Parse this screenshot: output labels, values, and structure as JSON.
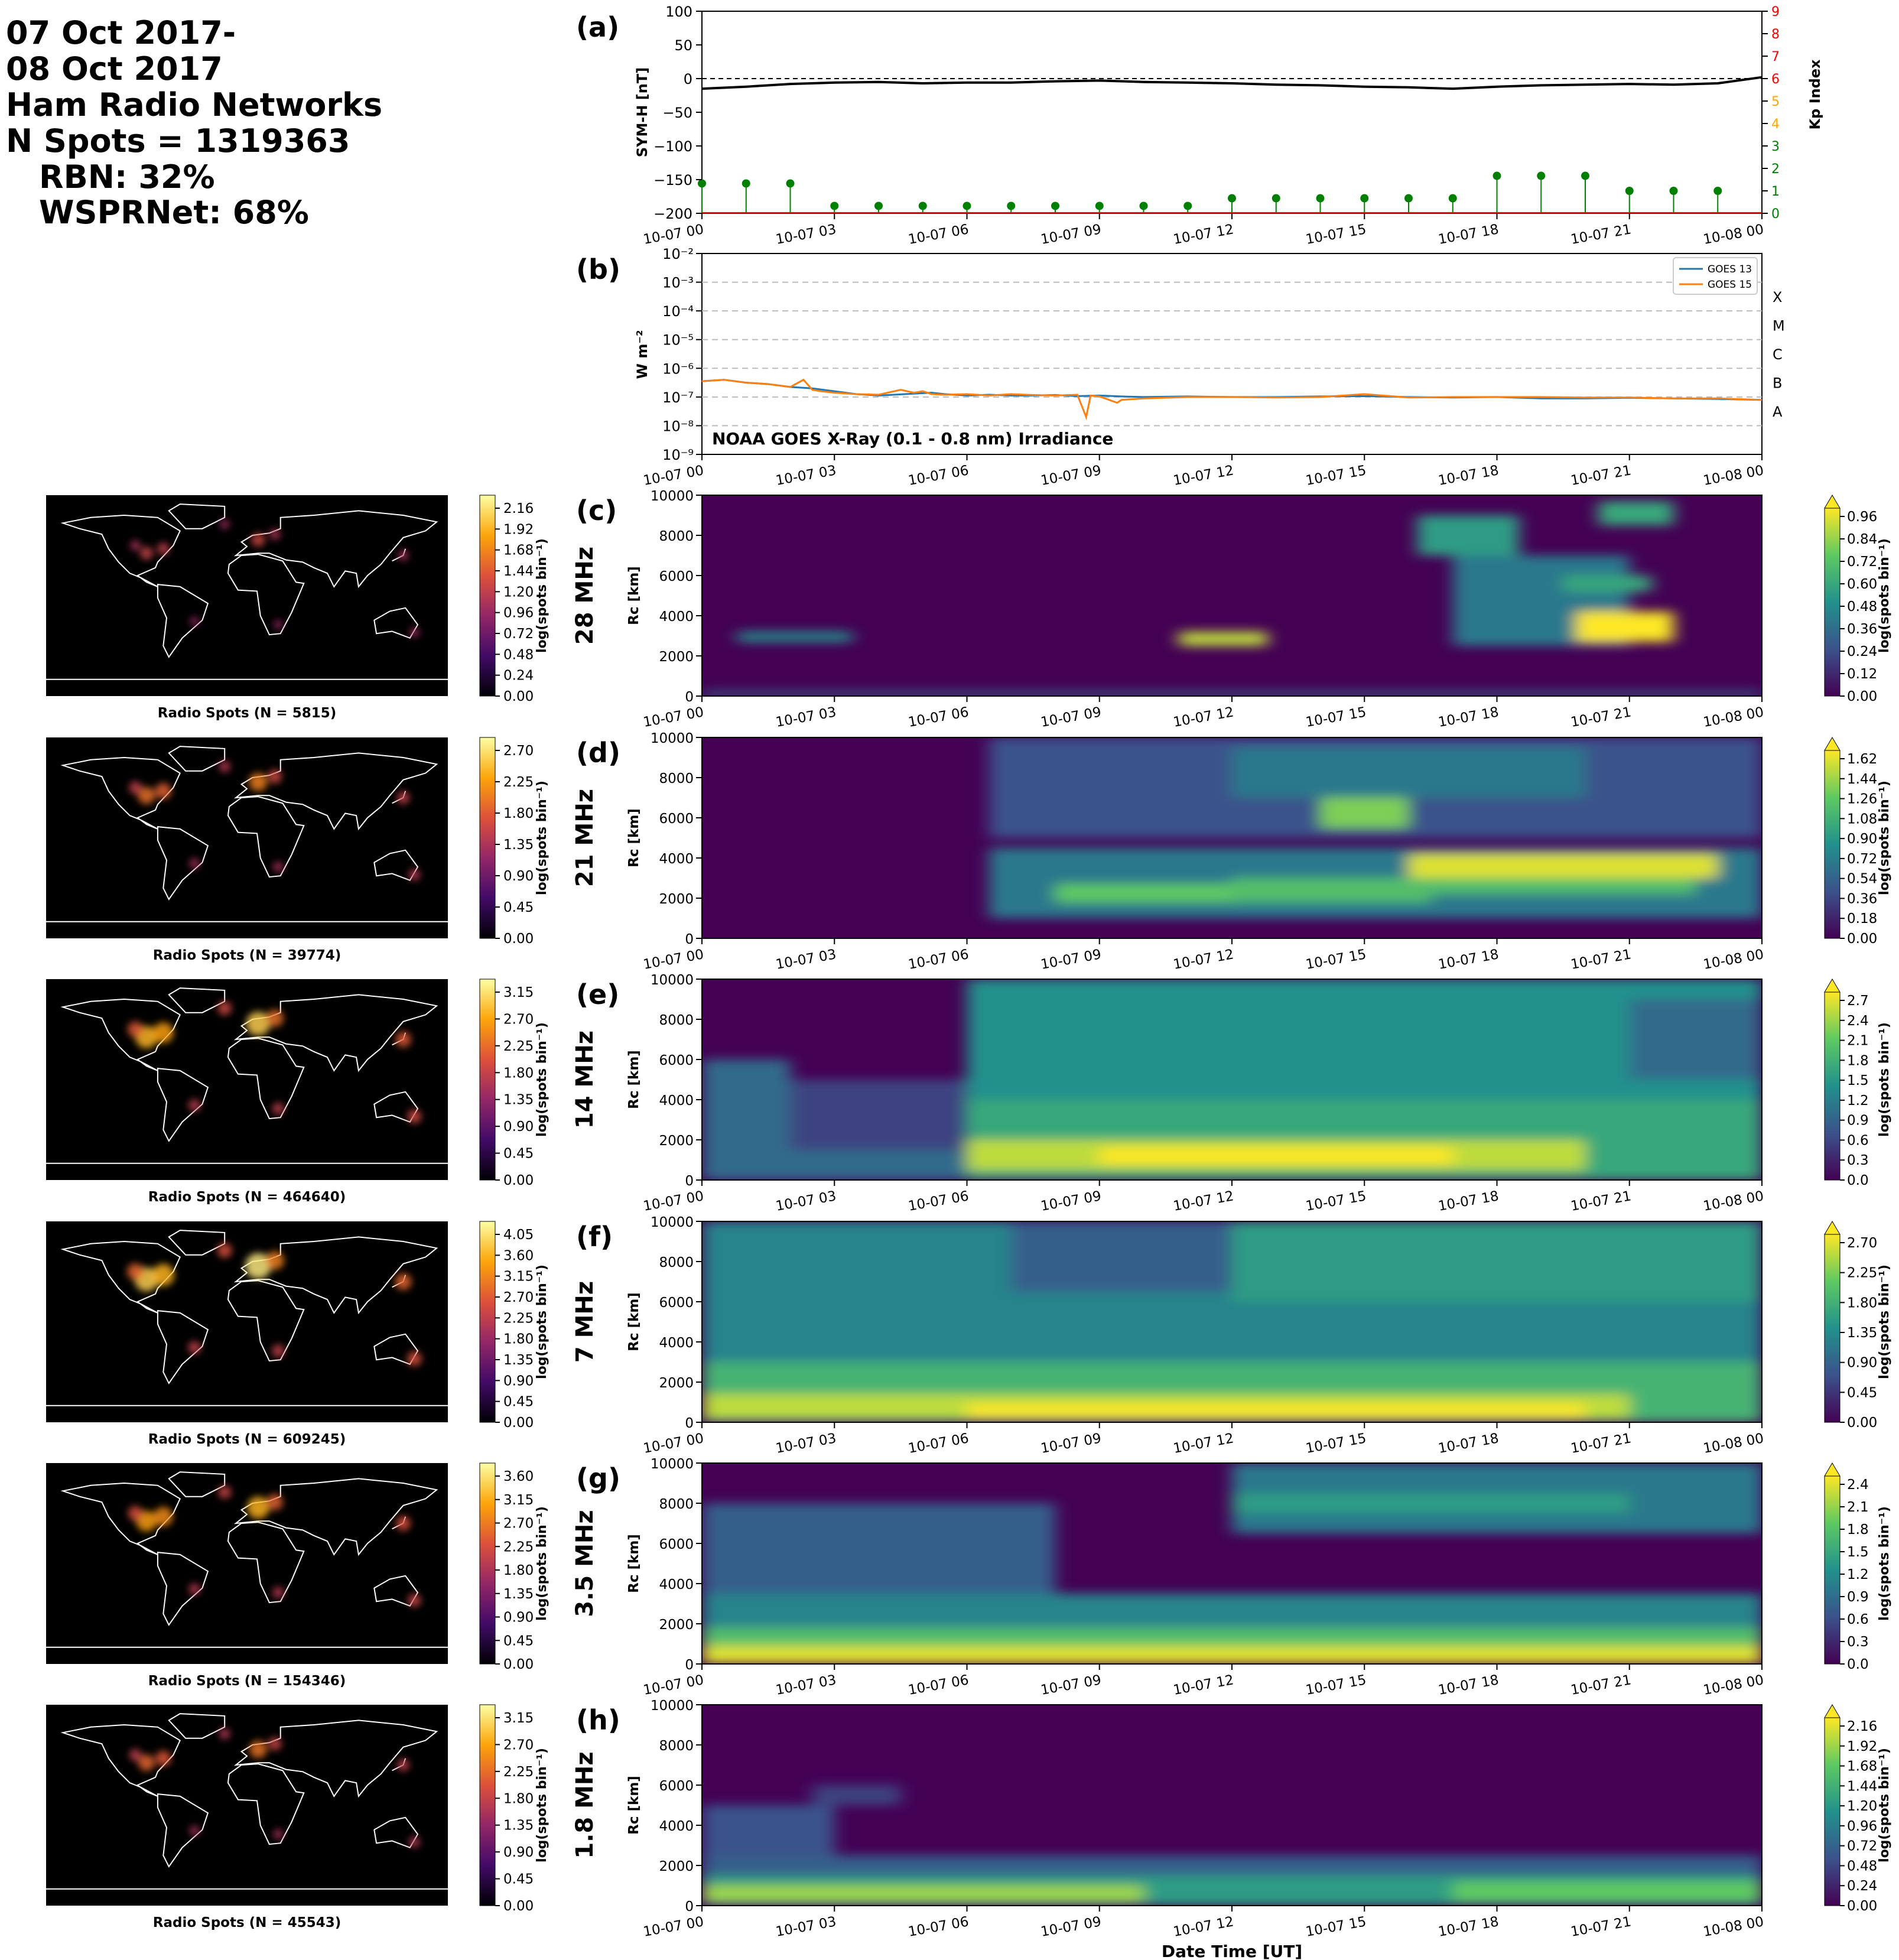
{
  "header": {
    "lines": [
      "07 Oct 2017-",
      "08 Oct 2017",
      "Ham Radio Networks",
      "N Spots = 1319363"
    ],
    "network_lines": [
      "RBN: 32%",
      "WSPRNet: 68%"
    ]
  },
  "time_ticks": [
    "10-07 00",
    "10-07 03",
    "10-07 06",
    "10-07 09",
    "10-07 12",
    "10-07 15",
    "10-07 18",
    "10-07 21",
    "10-08 00"
  ],
  "xlabel": "Date Time [UT]",
  "colors": {
    "symh_line": "#000000",
    "kp_low": "#008000",
    "kp_mid": "#ffa500",
    "kp_high": "#ff0000",
    "goes13": "#1f77b4",
    "goes15": "#ff7f0e",
    "viridis": [
      "#440154",
      "#3b528b",
      "#21918c",
      "#5ec962",
      "#fde725"
    ],
    "inferno": [
      "#000004",
      "#420a68",
      "#932667",
      "#dd513a",
      "#fca50a",
      "#fcffa4"
    ]
  },
  "chart_data": [
    {
      "panel": "(a)",
      "type": "line",
      "ylabel": "SYM-H [nT]",
      "ylim": [
        -200,
        100
      ],
      "yticks": [
        "100",
        "50",
        "0",
        "−50",
        "−100",
        "−150",
        "−200"
      ],
      "symh": {
        "x_hours": [
          0,
          1,
          2,
          3,
          4,
          5,
          6,
          7,
          8,
          9,
          10,
          11,
          12,
          13,
          14,
          15,
          16,
          17,
          18,
          19,
          20,
          21,
          22,
          23,
          24
        ],
        "values": [
          -15,
          -12,
          -8,
          -6,
          -5,
          -7,
          -6,
          -6,
          -4,
          -3,
          -5,
          -6,
          -7,
          -9,
          -10,
          -12,
          -13,
          -15,
          -12,
          -10,
          -9,
          -8,
          -9,
          -7,
          2
        ]
      },
      "kp": {
        "y2label": "Kp Index",
        "y2lim": [
          0,
          9
        ],
        "y2ticks": [
          "0",
          "1",
          "2",
          "3",
          "4",
          "5",
          "6",
          "7",
          "8",
          "9"
        ],
        "x_hours": [
          0,
          1,
          2,
          3,
          4,
          5,
          6,
          7,
          8,
          9,
          10,
          11,
          12,
          13,
          14,
          15,
          16,
          17,
          18,
          19,
          20,
          21,
          22,
          23
        ],
        "values": [
          1.33,
          1.33,
          1.33,
          0.33,
          0.33,
          0.33,
          0.33,
          0.33,
          0.33,
          0.33,
          0.33,
          0.33,
          0.67,
          0.67,
          0.67,
          0.67,
          0.67,
          0.67,
          1.67,
          1.67,
          1.67,
          1.0,
          1.0,
          1.0
        ]
      }
    },
    {
      "panel": "(b)",
      "type": "line",
      "ylabel": "W m⁻²",
      "yscale": "log",
      "ylim_exp": [
        -9,
        -2
      ],
      "yticks": [
        "10⁻²",
        "10⁻³",
        "10⁻⁴",
        "10⁻⁵",
        "10⁻⁶",
        "10⁻⁷",
        "10⁻⁸",
        "10⁻⁹"
      ],
      "flare_classes": [
        {
          "label": "X",
          "exp": -4
        },
        {
          "label": "M",
          "exp": -5
        },
        {
          "label": "C",
          "exp": -6
        },
        {
          "label": "B",
          "exp": -7
        },
        {
          "label": "A",
          "exp": -8
        }
      ],
      "annotation": "NOAA GOES X-Ray (0.1 - 0.8 nm) Irradiance",
      "series": [
        {
          "name": "GOES 13",
          "x_hours": [
            0,
            0.5,
            1,
            1.5,
            2,
            2.5,
            3,
            3.5,
            4,
            5.2,
            5.5,
            6,
            6.5,
            7,
            7.5,
            8,
            8.5,
            9,
            9.5,
            10,
            11,
            12,
            13,
            14,
            15,
            16,
            17,
            18,
            19,
            20,
            21,
            22,
            23,
            24
          ],
          "log10_values": [
            -6.45,
            -6.4,
            -6.5,
            -6.55,
            -6.65,
            -6.7,
            -6.8,
            -6.9,
            -6.95,
            -6.85,
            -6.9,
            -6.95,
            -6.92,
            -6.95,
            -6.95,
            -6.93,
            -6.97,
            -6.95,
            -6.98,
            -7.0,
            -6.98,
            -7.0,
            -7.0,
            -6.98,
            -6.97,
            -7.0,
            -7.02,
            -7.0,
            -7.05,
            -7.05,
            -7.03,
            -7.05,
            -7.07,
            -7.1
          ]
        },
        {
          "name": "GOES 15",
          "x_hours": [
            0,
            0.5,
            1,
            1.5,
            2,
            2.3,
            2.5,
            2.7,
            3,
            3.5,
            4,
            4.5,
            4.8,
            5,
            5.2,
            5.5,
            6,
            6.5,
            7,
            7.5,
            8,
            8.5,
            8.7,
            8.8,
            9,
            9.4,
            9.5,
            10,
            11,
            12,
            13,
            14,
            15,
            16,
            17,
            18,
            19,
            20,
            21,
            22,
            23,
            24
          ],
          "log10_values": [
            -6.45,
            -6.4,
            -6.5,
            -6.55,
            -6.65,
            -6.4,
            -6.75,
            -6.8,
            -6.85,
            -6.9,
            -6.92,
            -6.75,
            -6.85,
            -6.8,
            -6.9,
            -6.92,
            -6.9,
            -6.95,
            -6.9,
            -6.93,
            -6.95,
            -6.92,
            -7.7,
            -6.95,
            -6.98,
            -7.2,
            -7.1,
            -7.05,
            -7.0,
            -7.0,
            -7.02,
            -7.0,
            -6.9,
            -7.02,
            -7.0,
            -7.0,
            -7.0,
            -7.02,
            -7.02,
            -7.05,
            -7.05,
            -7.1
          ]
        }
      ]
    },
    {
      "panel": "(c)",
      "band": "28 MHz",
      "type": "heatmap",
      "map_caption": "Radio Spots (N = 5815)",
      "map_cbar_ticks": [
        "2.16",
        "1.92",
        "1.68",
        "1.44",
        "1.20",
        "0.96",
        "0.72",
        "0.48",
        "0.24",
        "0.00"
      ],
      "cbar_ticks": [
        "0.96",
        "0.84",
        "0.72",
        "0.60",
        "0.48",
        "0.36",
        "0.24",
        "0.12",
        "0.00"
      ],
      "ylabel": "R₝c [km]",
      "ylim": [
        0,
        10000
      ],
      "yticks": [
        "10000",
        "8000",
        "6000",
        "4000",
        "2000",
        "0"
      ],
      "regions": [
        {
          "t0": 0.0,
          "t1": 24.0,
          "r0": 0,
          "r1": 250,
          "level": 0.35
        },
        {
          "t0": 0.8,
          "t1": 3.4,
          "r0": 2700,
          "r1": 3200,
          "level": 0.5
        },
        {
          "t0": 10.8,
          "t1": 12.8,
          "r0": 2500,
          "r1": 3200,
          "level": 0.9
        },
        {
          "t0": 16.2,
          "t1": 18.5,
          "r0": 7000,
          "r1": 9000,
          "level": 0.55
        },
        {
          "t0": 17.0,
          "t1": 21.0,
          "r0": 2500,
          "r1": 7000,
          "level": 0.4
        },
        {
          "t0": 19.5,
          "t1": 21.5,
          "r0": 5200,
          "r1": 6000,
          "level": 0.6
        },
        {
          "t0": 19.8,
          "t1": 22.0,
          "r0": 2700,
          "r1": 4200,
          "level": 1.0
        },
        {
          "t0": 20.3,
          "t1": 22.0,
          "r0": 8500,
          "r1": 9700,
          "level": 0.6
        }
      ]
    },
    {
      "panel": "(d)",
      "band": "21 MHz",
      "type": "heatmap",
      "map_caption": "Radio Spots (N = 39774)",
      "map_cbar_ticks": [
        "2.70",
        "2.25",
        "1.80",
        "1.35",
        "0.90",
        "0.45",
        "0.00"
      ],
      "cbar_ticks": [
        "1.62",
        "1.44",
        "1.26",
        "1.08",
        "0.90",
        "0.72",
        "0.54",
        "0.36",
        "0.18",
        "0.00"
      ],
      "ylabel": "R₝c [km]",
      "ylim": [
        0,
        10000
      ],
      "yticks": [
        "10000",
        "8000",
        "6000",
        "4000",
        "2000",
        "0"
      ],
      "regions": [
        {
          "t0": 6.5,
          "t1": 24.0,
          "r0": 5000,
          "r1": 10000,
          "level": 0.25
        },
        {
          "t0": 6.5,
          "t1": 24.0,
          "r0": 1000,
          "r1": 4500,
          "level": 0.4
        },
        {
          "t0": 8.0,
          "t1": 12.0,
          "r0": 1800,
          "r1": 2700,
          "level": 0.75
        },
        {
          "t0": 12.0,
          "t1": 16.5,
          "r0": 1800,
          "r1": 3000,
          "level": 0.7
        },
        {
          "t0": 14.0,
          "t1": 16.0,
          "r0": 5500,
          "r1": 7000,
          "level": 0.8
        },
        {
          "t0": 12.0,
          "t1": 20.0,
          "r0": 7000,
          "r1": 9500,
          "level": 0.4
        },
        {
          "t0": 16.0,
          "t1": 23.0,
          "r0": 3000,
          "r1": 4200,
          "level": 0.95
        },
        {
          "t0": 16.5,
          "t1": 22.5,
          "r0": 2200,
          "r1": 3000,
          "level": 0.7
        }
      ]
    },
    {
      "panel": "(e)",
      "band": "14 MHz",
      "type": "heatmap",
      "map_caption": "Radio Spots (N = 464640)",
      "map_cbar_ticks": [
        "3.15",
        "2.70",
        "2.25",
        "1.80",
        "1.35",
        "0.90",
        "0.45",
        "0.00"
      ],
      "cbar_ticks": [
        "2.7",
        "2.4",
        "2.1",
        "1.8",
        "1.5",
        "1.2",
        "0.9",
        "0.6",
        "0.3",
        "0.0"
      ],
      "ylabel": "R₝c [km]",
      "ylim": [
        0,
        10000
      ],
      "yticks": [
        "10000",
        "8000",
        "6000",
        "4000",
        "2000",
        "0"
      ],
      "regions": [
        {
          "t0": 0.0,
          "t1": 2.0,
          "r0": 0,
          "r1": 6000,
          "level": 0.35
        },
        {
          "t0": 0.0,
          "t1": 6.0,
          "r0": 0,
          "r1": 1500,
          "level": 0.35
        },
        {
          "t0": 2.0,
          "t1": 6.5,
          "r0": 1500,
          "r1": 5000,
          "level": 0.2
        },
        {
          "t0": 6.0,
          "t1": 24.0,
          "r0": 0,
          "r1": 10000,
          "level": 0.5
        },
        {
          "t0": 6.0,
          "t1": 24.0,
          "r0": 0,
          "r1": 4000,
          "level": 0.6
        },
        {
          "t0": 6.0,
          "t1": 20.0,
          "r0": 500,
          "r1": 2000,
          "level": 0.9
        },
        {
          "t0": 9.0,
          "t1": 17.0,
          "r0": 800,
          "r1": 1600,
          "level": 1.0
        },
        {
          "t0": 21.0,
          "t1": 24.0,
          "r0": 5000,
          "r1": 9000,
          "level": 0.35
        }
      ]
    },
    {
      "panel": "(f)",
      "band": "7 MHz",
      "type": "heatmap",
      "map_caption": "Radio Spots (N = 609245)",
      "map_cbar_ticks": [
        "4.05",
        "3.60",
        "3.15",
        "2.70",
        "2.25",
        "1.80",
        "1.35",
        "0.90",
        "0.45",
        "0.00"
      ],
      "cbar_ticks": [
        "2.70",
        "2.25",
        "1.80",
        "1.35",
        "0.90",
        "0.45",
        "0.00"
      ],
      "ylabel": "R₝c [km]",
      "ylim": [
        0,
        10000
      ],
      "yticks": [
        "10000",
        "8000",
        "6000",
        "4000",
        "2000",
        "0"
      ],
      "regions": [
        {
          "t0": 0.0,
          "t1": 24.0,
          "r0": 0,
          "r1": 10000,
          "level": 0.45
        },
        {
          "t0": 7.0,
          "t1": 12.0,
          "r0": 6500,
          "r1": 10000,
          "level": 0.3
        },
        {
          "t0": 0.0,
          "t1": 24.0,
          "r0": 0,
          "r1": 3000,
          "level": 0.65
        },
        {
          "t0": 0.0,
          "t1": 21.0,
          "r0": 200,
          "r1": 1400,
          "level": 0.9
        },
        {
          "t0": 6.0,
          "t1": 20.0,
          "r0": 200,
          "r1": 900,
          "level": 1.0
        },
        {
          "t0": 12.0,
          "t1": 24.0,
          "r0": 6000,
          "r1": 10000,
          "level": 0.55
        }
      ]
    },
    {
      "panel": "(g)",
      "band": "3.5 MHz",
      "type": "heatmap",
      "map_caption": "Radio Spots (N = 154346)",
      "map_cbar_ticks": [
        "3.60",
        "3.15",
        "2.70",
        "2.25",
        "1.80",
        "1.35",
        "0.90",
        "0.45",
        "0.00"
      ],
      "cbar_ticks": [
        "2.4",
        "2.1",
        "1.8",
        "1.5",
        "1.2",
        "0.9",
        "0.6",
        "0.3",
        "0.0"
      ],
      "ylabel": "R₝c [km]",
      "ylim": [
        0,
        10000
      ],
      "yticks": [
        "10000",
        "8000",
        "6000",
        "4000",
        "2000",
        "0"
      ],
      "regions": [
        {
          "t0": 0.0,
          "t1": 8.0,
          "r0": 3000,
          "r1": 8000,
          "level": 0.3
        },
        {
          "t0": 0.0,
          "t1": 24.0,
          "r0": 0,
          "r1": 3500,
          "level": 0.45
        },
        {
          "t0": 0.0,
          "t1": 24.0,
          "r0": 0,
          "r1": 1800,
          "level": 0.7
        },
        {
          "t0": 0.0,
          "t1": 24.0,
          "r0": 0,
          "r1": 900,
          "level": 0.95
        },
        {
          "t0": 12.0,
          "t1": 24.0,
          "r0": 6500,
          "r1": 10000,
          "level": 0.4
        },
        {
          "t0": 12.0,
          "t1": 21.0,
          "r0": 7500,
          "r1": 8500,
          "level": 0.55
        }
      ]
    },
    {
      "panel": "(h)",
      "band": "1.8 MHz",
      "type": "heatmap",
      "map_caption": "Radio Spots (N = 45543)",
      "map_cbar_ticks": [
        "3.15",
        "2.70",
        "2.25",
        "1.80",
        "1.35",
        "0.90",
        "0.45",
        "0.00"
      ],
      "cbar_ticks": [
        "2.16",
        "1.92",
        "1.68",
        "1.44",
        "1.20",
        "0.96",
        "0.72",
        "0.48",
        "0.24",
        "0.00"
      ],
      "ylabel": "R₝c [km]",
      "ylim": [
        0,
        10000
      ],
      "yticks": [
        "10000",
        "8000",
        "6000",
        "4000",
        "2000",
        "0"
      ],
      "regions": [
        {
          "t0": 0.0,
          "t1": 24.0,
          "r0": 0,
          "r1": 2500,
          "level": 0.3
        },
        {
          "t0": 0.0,
          "t1": 24.0,
          "r0": 0,
          "r1": 1500,
          "level": 0.55
        },
        {
          "t0": 0.0,
          "t1": 10.0,
          "r0": 200,
          "r1": 1000,
          "level": 0.85
        },
        {
          "t0": 17.0,
          "t1": 24.0,
          "r0": 200,
          "r1": 1200,
          "level": 0.75
        },
        {
          "t0": 0.0,
          "t1": 3.0,
          "r0": 2500,
          "r1": 5000,
          "level": 0.25
        },
        {
          "t0": 2.5,
          "t1": 4.5,
          "r0": 5000,
          "r1": 6000,
          "level": 0.2
        }
      ]
    }
  ],
  "maps": {
    "hotspots": [
      {
        "lon": -90,
        "lat": 38,
        "intensity": 0.9
      },
      {
        "lon": -75,
        "lat": 42,
        "intensity": 0.8
      },
      {
        "lon": -100,
        "lat": 45,
        "intensity": 0.5
      },
      {
        "lon": 10,
        "lat": 50,
        "intensity": 1.0
      },
      {
        "lon": 25,
        "lat": 55,
        "intensity": 0.6
      },
      {
        "lon": -20,
        "lat": 64,
        "intensity": 0.4
      },
      {
        "lon": 140,
        "lat": 36,
        "intensity": 0.5
      },
      {
        "lon": 150,
        "lat": -33,
        "intensity": 0.4
      },
      {
        "lon": -47,
        "lat": -23,
        "intensity": 0.3
      },
      {
        "lon": 28,
        "lat": -26,
        "intensity": 0.3
      }
    ]
  }
}
